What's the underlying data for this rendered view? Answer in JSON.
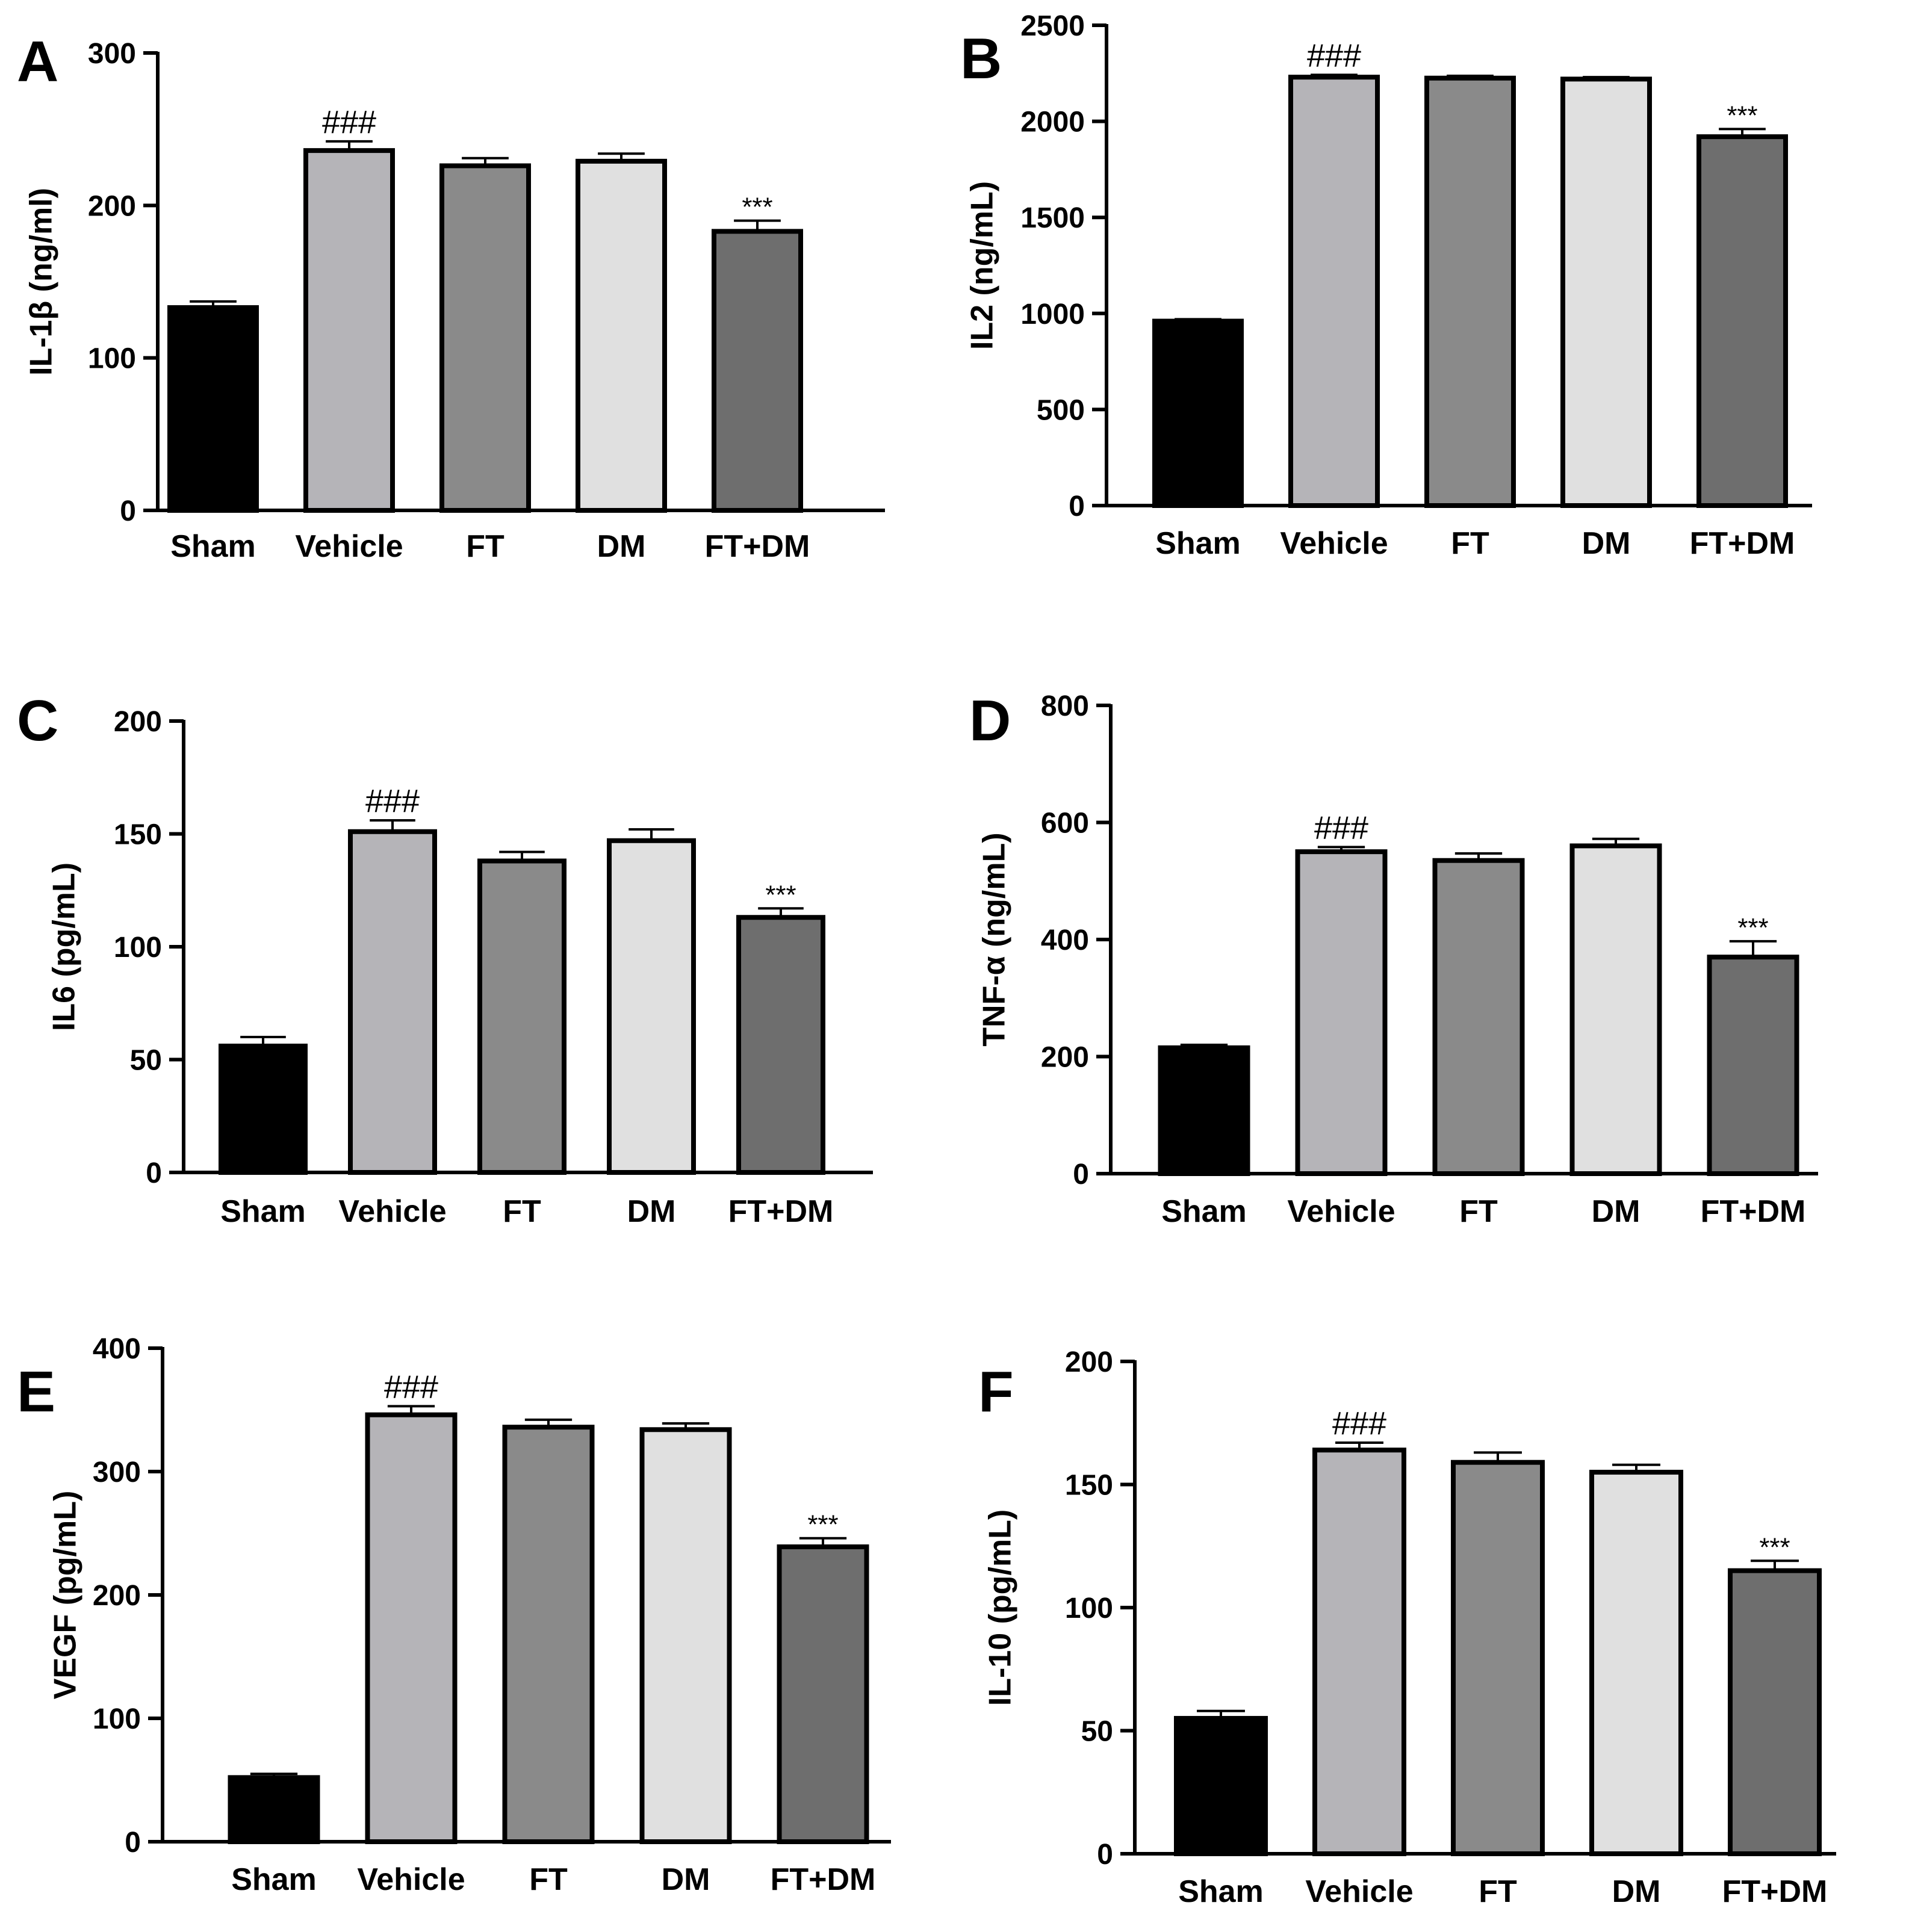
{
  "colors": {
    "bar_fills": [
      "#000000",
      "#b5b4b8",
      "#8a8a8a",
      "#e0e0e0",
      "#6e6e6e"
    ],
    "axis": "#000000"
  },
  "chart_data": [
    {
      "panel": "A",
      "type": "bar",
      "ylabel": "IL-1β (ng/ml)",
      "categories": [
        "Sham",
        "Vehicle",
        "FT",
        "DM",
        "FT+DM"
      ],
      "values": [
        133,
        236,
        226,
        229,
        183
      ],
      "errors": [
        4,
        6,
        5,
        5,
        7
      ],
      "annotations": [
        "",
        "###",
        "",
        "",
        "***"
      ],
      "ylim": [
        0,
        300
      ],
      "yticks": [
        0,
        100,
        200,
        300
      ]
    },
    {
      "panel": "B",
      "type": "bar",
      "ylabel": "IL2 (ng/mL)",
      "categories": [
        "Sham",
        "Vehicle",
        "FT",
        "DM",
        "FT+DM"
      ],
      "values": [
        960,
        2230,
        2225,
        2220,
        1920
      ],
      "errors": [
        10,
        12,
        12,
        10,
        40
      ],
      "annotations": [
        "",
        "###",
        "",
        "",
        "***"
      ],
      "ylim": [
        0,
        2500
      ],
      "yticks": [
        0,
        500,
        1000,
        1500,
        2000,
        2500
      ]
    },
    {
      "panel": "C",
      "type": "bar",
      "ylabel": "IL6 (pg/mL)",
      "categories": [
        "Sham",
        "Vehicle",
        "FT",
        "DM",
        "FT+DM"
      ],
      "values": [
        56,
        151,
        138,
        147,
        113
      ],
      "errors": [
        4,
        5,
        4,
        5,
        4
      ],
      "annotations": [
        "",
        "###",
        "",
        "",
        "***"
      ],
      "ylim": [
        0,
        200
      ],
      "yticks": [
        0,
        50,
        100,
        150,
        200
      ]
    },
    {
      "panel": "D",
      "type": "bar",
      "ylabel": "TNF-α (ng/mL)",
      "categories": [
        "Sham",
        "Vehicle",
        "FT",
        "DM",
        "FT+DM"
      ],
      "values": [
        215,
        550,
        535,
        560,
        370
      ],
      "errors": [
        5,
        8,
        12,
        12,
        27
      ],
      "annotations": [
        "",
        "###",
        "",
        "",
        "***"
      ],
      "ylim": [
        0,
        800
      ],
      "yticks": [
        0,
        200,
        400,
        600,
        800
      ]
    },
    {
      "panel": "E",
      "type": "bar",
      "ylabel": "VEGF (pg/mL)",
      "categories": [
        "Sham",
        "Vehicle",
        "FT",
        "DM",
        "FT+DM"
      ],
      "values": [
        52,
        346,
        336,
        334,
        239
      ],
      "errors": [
        3,
        7,
        6,
        5,
        7
      ],
      "annotations": [
        "",
        "###",
        "",
        "",
        "***"
      ],
      "ylim": [
        0,
        400
      ],
      "yticks": [
        0,
        100,
        200,
        300,
        400
      ]
    },
    {
      "panel": "F",
      "type": "bar",
      "ylabel": "IL-10 (pg/mL)",
      "categories": [
        "Sham",
        "Vehicle",
        "FT",
        "DM",
        "FT+DM"
      ],
      "values": [
        55,
        164,
        159,
        155,
        115
      ],
      "errors": [
        3,
        3,
        4,
        3,
        4
      ],
      "annotations": [
        "",
        "###",
        "",
        "",
        "***"
      ],
      "ylim": [
        0,
        200
      ],
      "yticks": [
        0,
        50,
        100,
        150,
        200
      ]
    }
  ]
}
